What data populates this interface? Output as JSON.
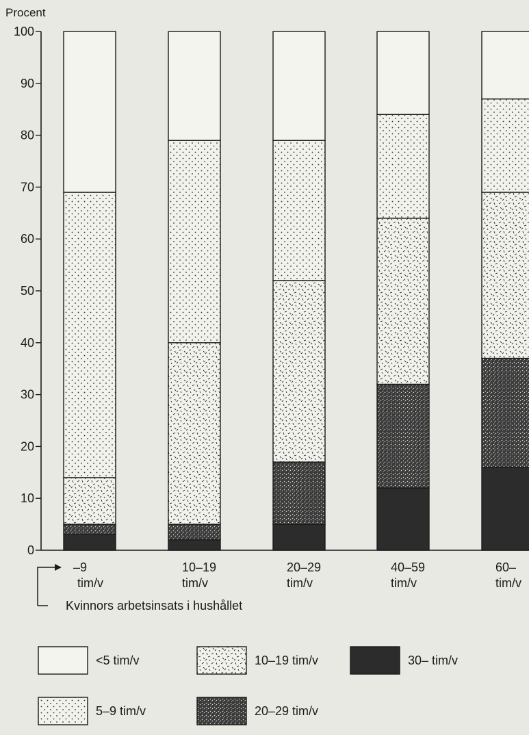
{
  "chart_data": {
    "type": "bar",
    "stacked": true,
    "ylabel": "Procent",
    "ylim": [
      0,
      100
    ],
    "yticks": [
      0,
      10,
      20,
      30,
      40,
      50,
      60,
      70,
      80,
      90,
      100
    ],
    "categories": [
      [
        "–9",
        "tim/v"
      ],
      [
        "10–19",
        "tim/v"
      ],
      [
        "20–29",
        "tim/v"
      ],
      [
        "40–59",
        "tim/v"
      ],
      [
        "60–",
        "tim/v"
      ]
    ],
    "xlabel": "Kvinnors arbetsinsats i hushållet",
    "series": [
      {
        "name": "30– tim/v",
        "pattern": "solid-dark",
        "values": [
          3,
          2,
          5,
          12,
          16
        ]
      },
      {
        "name": "20–29 tim/v",
        "pattern": "dense-stipple",
        "values": [
          2,
          3,
          12,
          20,
          21
        ]
      },
      {
        "name": "10–19 tim/v",
        "pattern": "dashes",
        "values": [
          9,
          35,
          35,
          32,
          32
        ]
      },
      {
        "name": "5–9 tim/v",
        "pattern": "dots",
        "values": [
          55,
          39,
          27,
          20,
          18
        ]
      },
      {
        "name": "<5 tim/v",
        "pattern": "blank",
        "values": [
          31,
          21,
          21,
          16,
          13
        ]
      }
    ],
    "legend_order": [
      "<5 tim/v",
      "10–19 tim/v",
      "30– tim/v",
      "5–9 tim/v",
      "20–29 tim/v"
    ],
    "legend_position": "bottom",
    "grid": false
  }
}
